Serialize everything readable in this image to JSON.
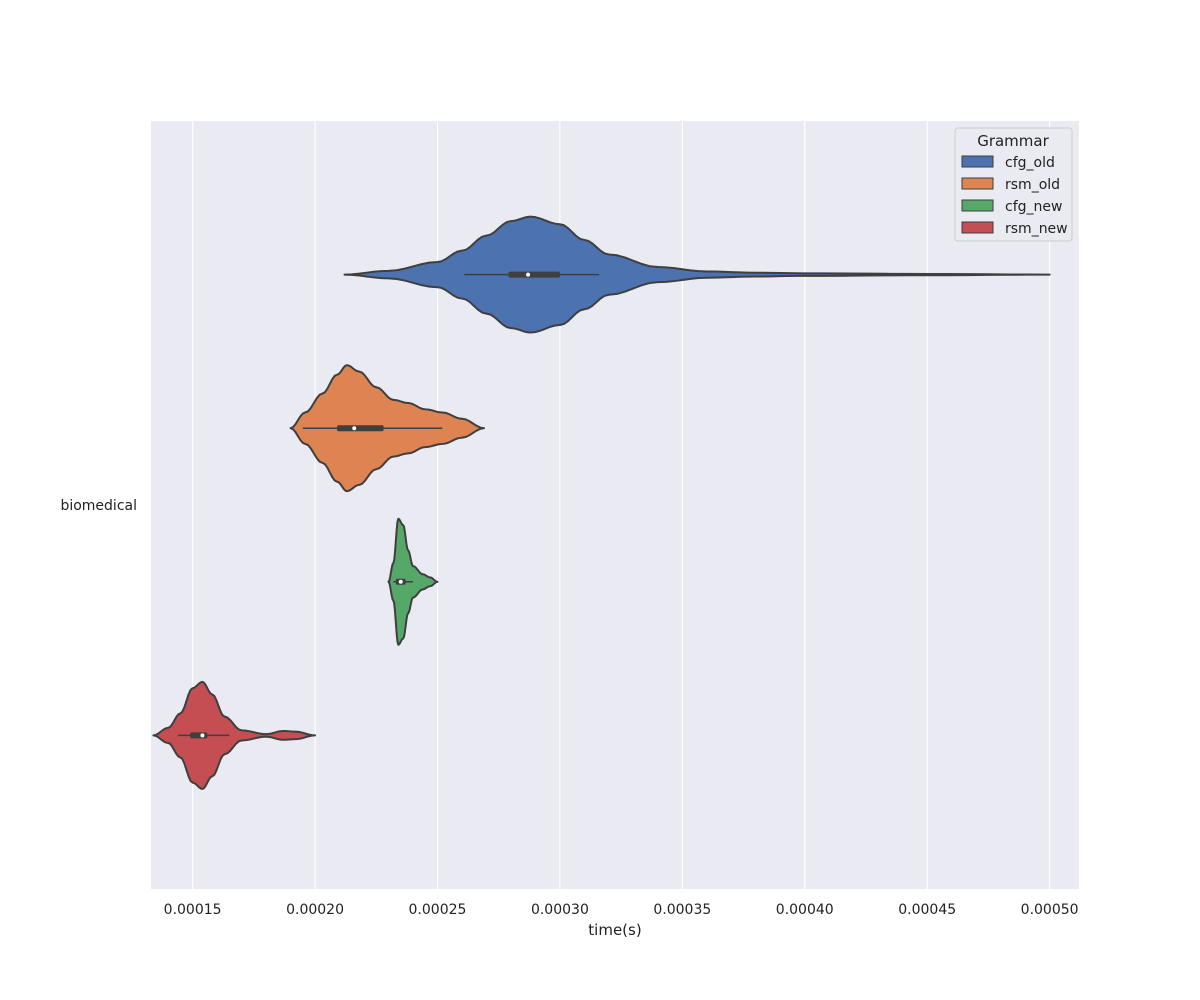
{
  "chart_data": {
    "type": "violin",
    "orientation": "horizontal",
    "xlabel": "time(s)",
    "ylabel": "",
    "categories": [
      "biomedical"
    ],
    "xlim": [
      0.000133,
      0.000512
    ],
    "xticks": [
      0.00015,
      0.0002,
      0.00025,
      0.0003,
      0.00035,
      0.0004,
      0.00045,
      0.0005
    ],
    "xtick_labels": [
      "0.00015",
      "0.00020",
      "0.00025",
      "0.00030",
      "0.00035",
      "0.00040",
      "0.00045",
      "0.00050"
    ],
    "grid": true,
    "legend": {
      "title": "Grammar",
      "position": "top-right",
      "entries": [
        "cfg_old",
        "rsm_old",
        "cfg_new",
        "rsm_new"
      ]
    },
    "series": [
      {
        "name": "cfg_old",
        "color": "#4c72b0",
        "category": "biomedical",
        "min": 0.000212,
        "max": 0.0005,
        "q1": 0.000279,
        "median": 0.000287,
        "q3": 0.0003,
        "whisker_low": 0.000261,
        "whisker_high": 0.000316,
        "density": [
          [
            0.000212,
            0.0
          ],
          [
            0.00023,
            0.06
          ],
          [
            0.00025,
            0.2
          ],
          [
            0.00026,
            0.38
          ],
          [
            0.00027,
            0.62
          ],
          [
            0.00028,
            0.85
          ],
          [
            0.000288,
            0.92
          ],
          [
            0.0003,
            0.8
          ],
          [
            0.00031,
            0.55
          ],
          [
            0.00032,
            0.32
          ],
          [
            0.00034,
            0.12
          ],
          [
            0.00036,
            0.05
          ],
          [
            0.00038,
            0.03
          ],
          [
            0.0004,
            0.02
          ],
          [
            0.00045,
            0.01
          ],
          [
            0.0005,
            0.0
          ]
        ]
      },
      {
        "name": "rsm_old",
        "color": "#dd8452",
        "category": "biomedical",
        "min": 0.00019,
        "max": 0.000269,
        "q1": 0.000209,
        "median": 0.000216,
        "q3": 0.000228,
        "whisker_low": 0.000195,
        "whisker_high": 0.000252,
        "density": [
          [
            0.00019,
            0.0
          ],
          [
            0.000196,
            0.25
          ],
          [
            0.000203,
            0.55
          ],
          [
            0.000209,
            0.85
          ],
          [
            0.000213,
            1.0
          ],
          [
            0.000218,
            0.9
          ],
          [
            0.000225,
            0.65
          ],
          [
            0.000232,
            0.45
          ],
          [
            0.000238,
            0.4
          ],
          [
            0.000245,
            0.3
          ],
          [
            0.000252,
            0.25
          ],
          [
            0.00026,
            0.15
          ],
          [
            0.000269,
            0.0
          ]
        ]
      },
      {
        "name": "cfg_new",
        "color": "#55a868",
        "category": "biomedical",
        "min": 0.00023,
        "max": 0.00025,
        "q1": 0.000233,
        "median": 0.000235,
        "q3": 0.000237,
        "whisker_low": 0.000232,
        "whisker_high": 0.00024,
        "density": [
          [
            0.00023,
            0.0
          ],
          [
            0.000232,
            0.3
          ],
          [
            0.000234,
            1.0
          ],
          [
            0.000236,
            0.9
          ],
          [
            0.000238,
            0.5
          ],
          [
            0.00024,
            0.25
          ],
          [
            0.000244,
            0.12
          ],
          [
            0.000247,
            0.07
          ],
          [
            0.00025,
            0.0
          ]
        ]
      },
      {
        "name": "rsm_new",
        "color": "#c44e52",
        "category": "biomedical",
        "min": 0.000134,
        "max": 0.0002,
        "q1": 0.000149,
        "median": 0.000154,
        "q3": 0.000156,
        "whisker_low": 0.000144,
        "whisker_high": 0.000165,
        "density": [
          [
            0.000134,
            0.0
          ],
          [
            0.00014,
            0.12
          ],
          [
            0.000145,
            0.35
          ],
          [
            0.00015,
            0.75
          ],
          [
            0.000154,
            0.85
          ],
          [
            0.000158,
            0.65
          ],
          [
            0.000163,
            0.3
          ],
          [
            0.00017,
            0.08
          ],
          [
            0.00018,
            0.02
          ],
          [
            0.000187,
            0.07
          ],
          [
            0.000192,
            0.06
          ],
          [
            0.0002,
            0.0
          ]
        ]
      }
    ]
  }
}
